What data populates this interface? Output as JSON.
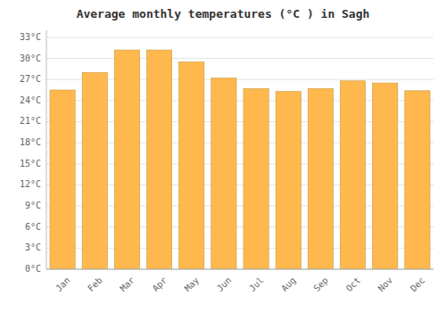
{
  "chart_data": {
    "type": "bar",
    "title": "Average monthly temperatures (°C ) in Sagh",
    "categories": [
      "Jan",
      "Feb",
      "Mar",
      "Apr",
      "May",
      "Jun",
      "Jul",
      "Aug",
      "Sep",
      "Oct",
      "Nov",
      "Dec"
    ],
    "values": [
      25.5,
      28.0,
      31.2,
      31.2,
      29.5,
      27.2,
      25.7,
      25.3,
      25.7,
      26.8,
      26.5,
      25.4
    ],
    "color": "#FFB84D",
    "ylim": [
      0,
      34
    ],
    "yticks": [
      {
        "value": 0,
        "label": "0°C"
      },
      {
        "value": 3,
        "label": "3°C"
      },
      {
        "value": 6,
        "label": "6°C"
      },
      {
        "value": 9,
        "label": "9°C"
      },
      {
        "value": 12,
        "label": "12°C"
      },
      {
        "value": 15,
        "label": "15°C"
      },
      {
        "value": 18,
        "label": "18°C"
      },
      {
        "value": 21,
        "label": "21°C"
      },
      {
        "value": 24,
        "label": "24°C"
      },
      {
        "value": 27,
        "label": "27°C"
      },
      {
        "value": 30,
        "label": "30°C"
      },
      {
        "value": 33,
        "label": "33°C"
      }
    ],
    "grid": true
  }
}
